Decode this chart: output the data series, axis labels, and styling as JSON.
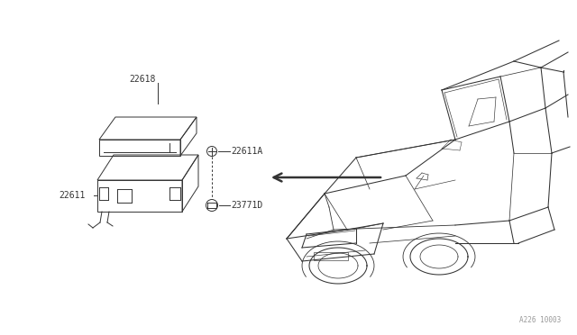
{
  "bg_color": "#ffffff",
  "line_color": "#333333",
  "fig_width": 6.4,
  "fig_height": 3.72,
  "dpi": 100,
  "watermark": "A226 10003",
  "label_fontsize": 7.0,
  "lw": 0.7
}
